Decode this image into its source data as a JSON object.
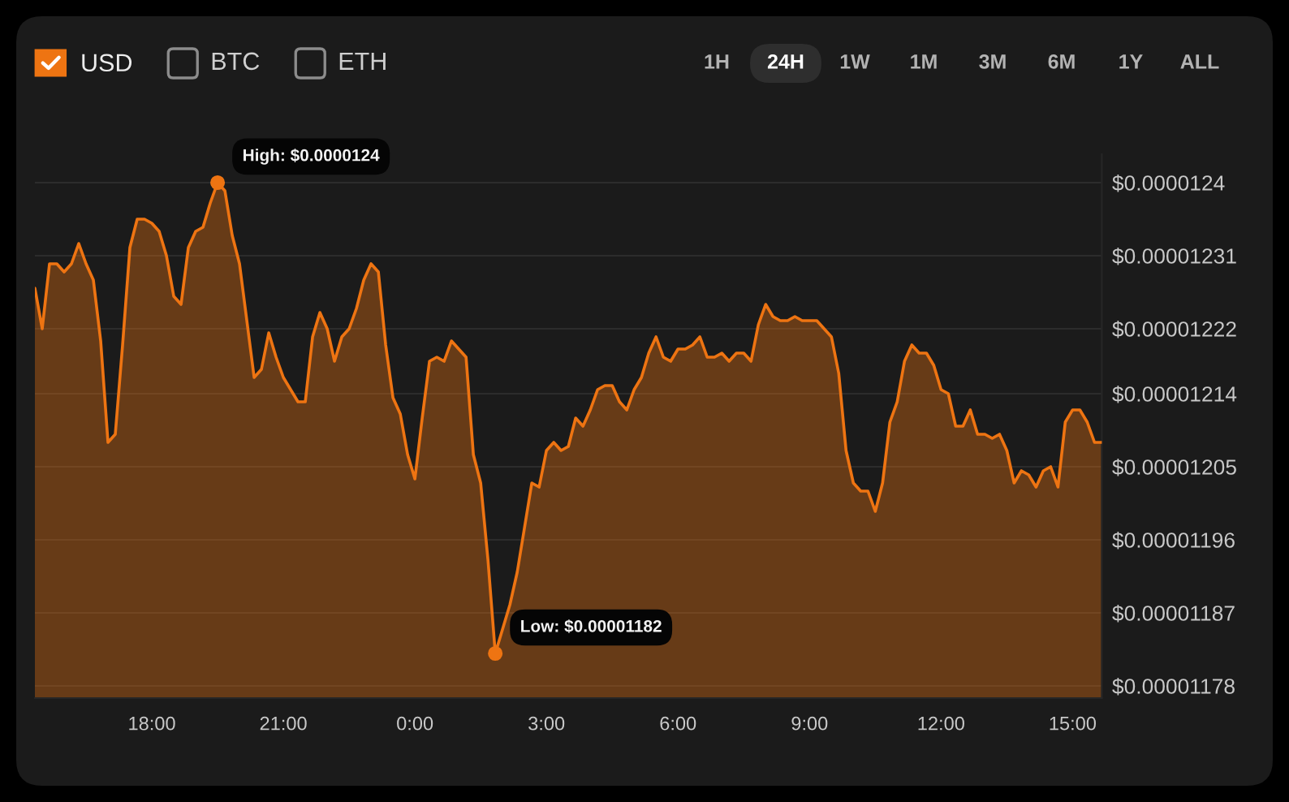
{
  "chart_data": {
    "type": "area",
    "categories": [
      null,
      null,
      null,
      null,
      null,
      null,
      null,
      null,
      null,
      null,
      null,
      null,
      null,
      null,
      null,
      null,
      "18:00",
      null,
      null,
      null,
      null,
      null,
      null,
      null,
      null,
      null,
      null,
      null,
      null,
      null,
      null,
      null,
      null,
      null,
      "21:00",
      null,
      null,
      null,
      null,
      null,
      null,
      null,
      null,
      null,
      null,
      null,
      null,
      null,
      null,
      null,
      null,
      null,
      "0:00",
      null,
      null,
      null,
      null,
      null,
      null,
      null,
      null,
      null,
      null,
      null,
      null,
      null,
      null,
      null,
      null,
      null,
      "3:00",
      null,
      null,
      null,
      null,
      null,
      null,
      null,
      null,
      null,
      null,
      null,
      null,
      null,
      null,
      null,
      null,
      null,
      "6:00",
      null,
      null,
      null,
      null,
      null,
      null,
      null,
      null,
      null,
      null,
      null,
      null,
      null,
      null,
      null,
      null,
      null,
      "9:00",
      null,
      null,
      null,
      null,
      null,
      null,
      null,
      null,
      null,
      null,
      null,
      null,
      null,
      null,
      null,
      null,
      null,
      "12:00",
      null,
      null,
      null,
      null,
      null,
      null,
      null,
      null,
      null,
      null,
      null,
      null,
      null,
      null,
      null,
      null,
      null,
      "15:00",
      null,
      null,
      null,
      null
    ],
    "series": [
      {
        "name": "USD",
        "color": "#ee7412",
        "values": [
          1.227e-05,
          1.222e-05,
          1.23e-05,
          1.23e-05,
          1.229e-05,
          1.23e-05,
          1.2325e-05,
          1.23e-05,
          1.228e-05,
          1.2205e-05,
          1.208e-05,
          1.209e-05,
          1.22e-05,
          1.232e-05,
          1.2355e-05,
          1.2355e-05,
          1.235e-05,
          1.234e-05,
          1.231e-05,
          1.226e-05,
          1.225e-05,
          1.232e-05,
          1.234e-05,
          1.2345e-05,
          1.2375e-05,
          1.24e-05,
          1.239e-05,
          1.2335e-05,
          1.23e-05,
          1.223e-05,
          1.216e-05,
          1.217e-05,
          1.2215e-05,
          1.2185e-05,
          1.216e-05,
          1.2145e-05,
          1.213e-05,
          1.213e-05,
          1.221e-05,
          1.224e-05,
          1.222e-05,
          1.218e-05,
          1.221e-05,
          1.222e-05,
          1.2245e-05,
          1.228e-05,
          1.23e-05,
          1.229e-05,
          1.22e-05,
          1.2135e-05,
          1.2115e-05,
          1.2065e-05,
          1.2035e-05,
          1.211e-05,
          1.218e-05,
          1.2185e-05,
          1.218e-05,
          1.2205e-05,
          1.2195e-05,
          1.2185e-05,
          1.2065e-05,
          1.203e-05,
          1.1935e-05,
          1.182e-05,
          1.185e-05,
          1.188e-05,
          1.192e-05,
          1.1975e-05,
          1.203e-05,
          1.2025e-05,
          1.207e-05,
          1.208e-05,
          1.207e-05,
          1.2075e-05,
          1.211e-05,
          1.21e-05,
          1.212e-05,
          1.2145e-05,
          1.215e-05,
          1.215e-05,
          1.213e-05,
          1.212e-05,
          1.2145e-05,
          1.216e-05,
          1.219e-05,
          1.221e-05,
          1.2185e-05,
          1.218e-05,
          1.2195e-05,
          1.2195e-05,
          1.22e-05,
          1.221e-05,
          1.2185e-05,
          1.2185e-05,
          1.219e-05,
          1.218e-05,
          1.219e-05,
          1.219e-05,
          1.218e-05,
          1.2225e-05,
          1.225e-05,
          1.2235e-05,
          1.223e-05,
          1.223e-05,
          1.2235e-05,
          1.223e-05,
          1.223e-05,
          1.223e-05,
          1.222e-05,
          1.221e-05,
          1.2165e-05,
          1.207e-05,
          1.203e-05,
          1.202e-05,
          1.202e-05,
          1.1995e-05,
          1.203e-05,
          1.2105e-05,
          1.213e-05,
          1.218e-05,
          1.22e-05,
          1.219e-05,
          1.219e-05,
          1.2175e-05,
          1.2145e-05,
          1.214e-05,
          1.21e-05,
          1.21e-05,
          1.212e-05,
          1.209e-05,
          1.209e-05,
          1.2085e-05,
          1.209e-05,
          1.207e-05,
          1.203e-05,
          1.2045e-05,
          1.204e-05,
          1.2025e-05,
          1.2045e-05,
          1.205e-05,
          1.2025e-05,
          1.2105e-05,
          1.212e-05,
          1.212e-05,
          1.2105e-05,
          1.208e-05,
          1.208e-05
        ]
      }
    ],
    "ylim": [
      1.1765e-05,
      1.2435e-05
    ],
    "yticks": [
      {
        "value": 1.178e-05,
        "label": "$0.00001178"
      },
      {
        "value": 1.187e-05,
        "label": "$0.00001187"
      },
      {
        "value": 1.196e-05,
        "label": "$0.00001196"
      },
      {
        "value": 1.205e-05,
        "label": "$0.00001205"
      },
      {
        "value": 1.214e-05,
        "label": "$0.00001214"
      },
      {
        "value": 1.222e-05,
        "label": "$0.00001222"
      },
      {
        "value": 1.231e-05,
        "label": "$0.00001231"
      },
      {
        "value": 1.24e-05,
        "label": "$0.0000124"
      }
    ],
    "grid": "y",
    "legend": "top left",
    "annotations": [
      "BTC",
      "ETH",
      "1H",
      "24H",
      "1W",
      "1M",
      "3M",
      "6M",
      "1Y",
      "ALL",
      "High: $0.0000124",
      "Low: $0.00001182"
    ]
  }
}
